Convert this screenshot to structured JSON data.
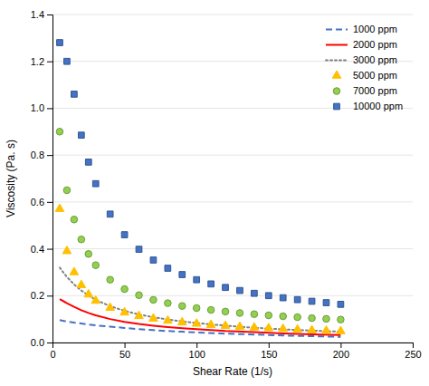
{
  "chart_data": {
    "type": "line",
    "xlabel": "Shear Rate (1/s)",
    "ylabel": "Viscosity (Pa. s)",
    "xlim": [
      0,
      250
    ],
    "ylim": [
      0,
      1.4
    ],
    "xticks": [
      0,
      50,
      100,
      150,
      200,
      250
    ],
    "yticks": [
      {
        "value": 0,
        "label": "0.0"
      },
      0.2,
      0.4,
      0.6,
      0.8,
      {
        "value": 1,
        "label": "1.0"
      },
      1.2,
      1.4
    ],
    "grid": "y",
    "legend": "upper right",
    "series": [
      {
        "name": "1000 ppm",
        "type": "line",
        "line_style": "dashed",
        "color": "#4472C4",
        "x": [
          5,
          8,
          10,
          15,
          20,
          25,
          30,
          40,
          50,
          60,
          70,
          80,
          90,
          100,
          120,
          140,
          160,
          180,
          200
        ],
        "values": [
          0.096,
          0.092,
          0.09,
          0.085,
          0.081,
          0.077,
          0.073,
          0.068,
          0.062,
          0.057,
          0.053,
          0.049,
          0.046,
          0.043,
          0.038,
          0.034,
          0.03,
          0.027,
          0.024
        ]
      },
      {
        "name": "2000 ppm",
        "type": "line",
        "line_style": "solid",
        "color": "#FF0000",
        "x": [
          5,
          8,
          10,
          15,
          20,
          25,
          30,
          40,
          50,
          60,
          70,
          80,
          90,
          100,
          120,
          140,
          160,
          180,
          200
        ],
        "values": [
          0.185,
          0.175,
          0.168,
          0.152,
          0.138,
          0.126,
          0.116,
          0.1,
          0.088,
          0.079,
          0.072,
          0.066,
          0.061,
          0.057,
          0.049,
          0.044,
          0.039,
          0.035,
          0.032
        ]
      },
      {
        "name": "3000 ppm",
        "type": "line",
        "line_style": "dotted",
        "color": "#808080",
        "x": [
          5,
          8,
          10,
          15,
          20,
          25,
          30,
          40,
          50,
          60,
          70,
          80,
          90,
          100,
          120,
          140,
          160,
          180,
          200
        ],
        "values": [
          0.32,
          0.295,
          0.28,
          0.248,
          0.222,
          0.2,
          0.182,
          0.155,
          0.135,
          0.12,
          0.108,
          0.098,
          0.09,
          0.083,
          0.072,
          0.063,
          0.056,
          0.051,
          0.046
        ]
      },
      {
        "name": "5000 ppm",
        "type": "scatter",
        "marker": "triangle",
        "color": "#FFC000",
        "x": [
          5,
          10,
          15,
          20,
          25,
          30,
          40,
          50,
          60,
          70,
          80,
          90,
          100,
          110,
          120,
          130,
          140,
          150,
          160,
          170,
          180,
          190,
          200
        ],
        "values": [
          0.57,
          0.39,
          0.3,
          0.245,
          0.205,
          0.178,
          0.148,
          0.128,
          0.113,
          0.102,
          0.093,
          0.086,
          0.08,
          0.075,
          0.071,
          0.067,
          0.064,
          0.061,
          0.058,
          0.055,
          0.052,
          0.05,
          0.048
        ]
      },
      {
        "name": "7000 ppm",
        "type": "scatter",
        "marker": "circle",
        "color": "#92D050",
        "x": [
          5,
          10,
          15,
          20,
          25,
          30,
          40,
          50,
          60,
          70,
          80,
          90,
          100,
          110,
          120,
          130,
          140,
          150,
          160,
          170,
          180,
          190,
          200
        ],
        "values": [
          0.9,
          0.65,
          0.525,
          0.44,
          0.378,
          0.33,
          0.268,
          0.228,
          0.202,
          0.182,
          0.168,
          0.156,
          0.147,
          0.139,
          0.132,
          0.126,
          0.121,
          0.116,
          0.112,
          0.108,
          0.104,
          0.101,
          0.098
        ]
      },
      {
        "name": "10000 ppm",
        "type": "scatter",
        "marker": "square",
        "color": "#4472C4",
        "x": [
          5,
          10,
          15,
          20,
          25,
          30,
          40,
          50,
          60,
          70,
          80,
          90,
          100,
          110,
          120,
          130,
          140,
          150,
          160,
          170,
          180,
          190,
          200
        ],
        "values": [
          1.28,
          1.2,
          1.06,
          0.885,
          0.77,
          0.678,
          0.548,
          0.46,
          0.398,
          0.352,
          0.317,
          0.29,
          0.268,
          0.25,
          0.235,
          0.222,
          0.21,
          0.2,
          0.191,
          0.183,
          0.176,
          0.17,
          0.163
        ]
      }
    ]
  }
}
